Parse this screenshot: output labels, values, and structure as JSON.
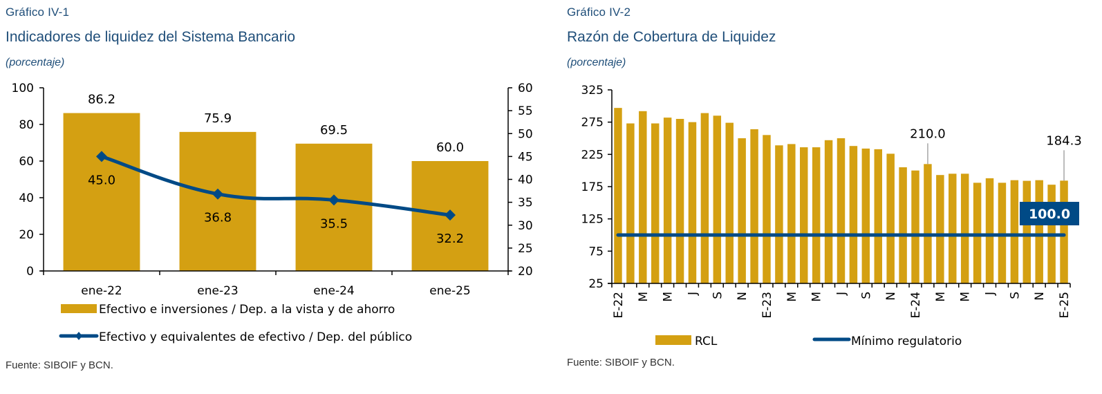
{
  "colors": {
    "bar": "#D4A012",
    "line": "#004A86",
    "text": "#000000",
    "title": "#1F4E79",
    "leader": "#A6A6A6"
  },
  "left": {
    "kicker": "Gráfico IV-1",
    "title": "Indicadores de liquidez del Sistema Bancario",
    "subtitle": "(porcentaje)",
    "source": "Fuente: SIBOIF y BCN."
  },
  "right": {
    "kicker": "Gráfico IV-2",
    "title": "Razón de Cobertura de Liquidez",
    "subtitle": "(porcentaje)",
    "source": "Fuente: SIBOIF y BCN."
  },
  "chart_data": [
    {
      "type": "bar",
      "title": "Indicadores de liquidez del Sistema Bancario",
      "subtitle": "(porcentaje)",
      "categories": [
        "ene-22",
        "ene-23",
        "ene-24",
        "ene-25"
      ],
      "series": [
        {
          "name": "Efectivo e inversiones / Dep. a la vista y de ahorro",
          "kind": "bar",
          "axis": "left",
          "values": [
            86.2,
            75.9,
            69.5,
            60.0
          ],
          "labels": [
            "86.2",
            "75.9",
            "69.5",
            "60.0"
          ]
        },
        {
          "name": "Efectivo y equivalentes de efectivo / Dep. del público",
          "kind": "line",
          "marker": "diamond",
          "axis": "right",
          "values": [
            45.0,
            36.8,
            35.5,
            32.2
          ],
          "labels": [
            "45.0",
            "36.8",
            "35.5",
            "32.2"
          ]
        }
      ],
      "y_left": {
        "min": 0,
        "max": 100,
        "ticks": [
          "0",
          "20",
          "40",
          "60",
          "80",
          "100"
        ]
      },
      "y_right": {
        "min": 20,
        "max": 60,
        "ticks": [
          "20",
          "25",
          "30",
          "35",
          "40",
          "45",
          "50",
          "55",
          "60"
        ]
      },
      "grid": false,
      "legend": "bottom"
    },
    {
      "type": "bar",
      "title": "Razón de Cobertura de Liquidez",
      "subtitle": "(porcentaje)",
      "x_tick_labels": [
        "E-22",
        "",
        "M",
        "",
        "M",
        "",
        "J",
        "",
        "S",
        "",
        "N",
        "",
        "E-23",
        "",
        "M",
        "",
        "M",
        "",
        "J",
        "",
        "S",
        "",
        "N",
        "",
        "E-24",
        "",
        "M",
        "",
        "M",
        "",
        "J",
        "",
        "S",
        "",
        "N",
        "",
        "E-25"
      ],
      "series": [
        {
          "name": "RCL",
          "kind": "bar",
          "values": [
            297,
            273,
            292,
            273,
            282,
            280,
            275,
            289,
            285,
            274,
            250,
            264,
            255,
            239,
            241,
            236,
            236,
            247,
            250,
            238,
            234,
            233,
            226,
            205,
            200,
            210.0,
            193,
            195,
            195,
            181,
            188,
            181,
            185,
            184,
            185,
            178,
            184.3
          ]
        },
        {
          "name": "Mínimo regulatorio",
          "kind": "line",
          "value": 100.0
        }
      ],
      "annotations": [
        {
          "bar_index": 25,
          "text": "210.0"
        },
        {
          "bar_index": 36,
          "text": "184.3"
        },
        {
          "series": "Mínimo regulatorio",
          "text": "100.0",
          "boxed": true
        }
      ],
      "y": {
        "min": 25,
        "max": 325,
        "ticks": [
          "25",
          "75",
          "125",
          "175",
          "225",
          "275",
          "325"
        ]
      },
      "grid": false,
      "legend": "bottom"
    }
  ]
}
